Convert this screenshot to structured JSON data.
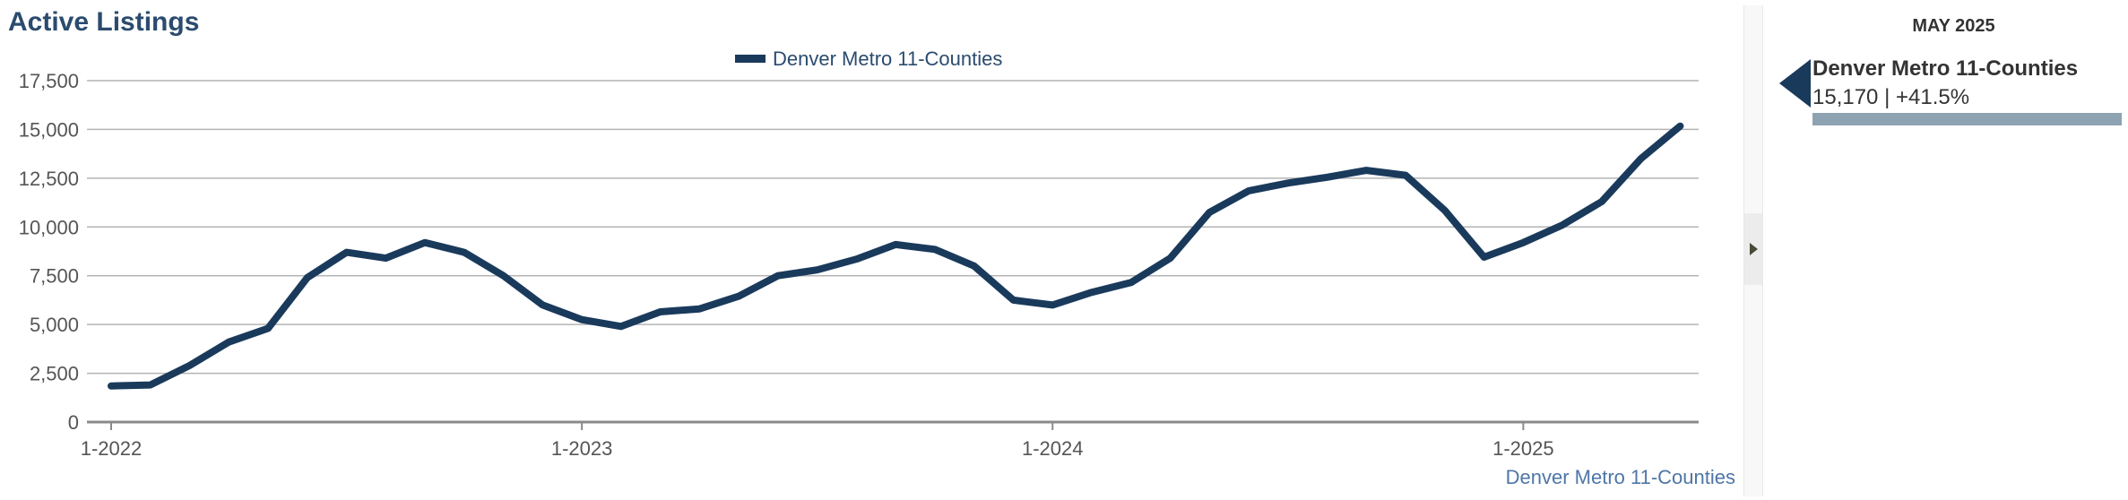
{
  "title": "Active Listings",
  "colors": {
    "title": "#2b4b6e",
    "series": "#1a3a5c",
    "grid": "#b4b4b4",
    "axis_text": "#555555",
    "legend_text": "#2b4b6e",
    "source_text": "#4e76a6",
    "panel_bar": "#8ea3b2"
  },
  "chart_data": {
    "type": "line",
    "title": "Active Listings",
    "xlabel": "",
    "ylabel": "",
    "ylim": [
      0,
      17500
    ],
    "yticks": [
      "0",
      "2,500",
      "5,000",
      "7,500",
      "10,000",
      "12,500",
      "15,000",
      "17,500"
    ],
    "ytick_values": [
      0,
      2500,
      5000,
      7500,
      10000,
      12500,
      15000,
      17500
    ],
    "xticks": [
      "1-2022",
      "1-2023",
      "1-2024",
      "1-2025"
    ],
    "grid": true,
    "legend": {
      "position": "top-center",
      "entries": [
        "Denver Metro 11-Counties"
      ]
    },
    "x": [
      "1-2022",
      "2-2022",
      "3-2022",
      "4-2022",
      "5-2022",
      "6-2022",
      "7-2022",
      "8-2022",
      "9-2022",
      "10-2022",
      "11-2022",
      "12-2022",
      "1-2023",
      "2-2023",
      "3-2023",
      "4-2023",
      "5-2023",
      "6-2023",
      "7-2023",
      "8-2023",
      "9-2023",
      "10-2023",
      "11-2023",
      "12-2023",
      "1-2024",
      "2-2024",
      "3-2024",
      "4-2024",
      "5-2024",
      "6-2024",
      "7-2024",
      "8-2024",
      "9-2024",
      "10-2024",
      "11-2024",
      "12-2024",
      "1-2025",
      "2-2025",
      "3-2025",
      "4-2025",
      "5-2025"
    ],
    "series": [
      {
        "name": "Denver Metro 11-Counties",
        "values": [
          1850,
          1900,
          2900,
          4100,
          4800,
          7400,
          8700,
          8400,
          9200,
          8700,
          7500,
          6000,
          5250,
          4900,
          5650,
          5800,
          6450,
          7500,
          7800,
          8350,
          9100,
          8850,
          8000,
          6250,
          6000,
          6650,
          7150,
          8400,
          10750,
          11850,
          12250,
          12550,
          12900,
          12650,
          10850,
          8450,
          9200,
          10100,
          11300,
          13500,
          15170
        ]
      }
    ],
    "source_label": "Denver Metro 11-Counties"
  },
  "side_panel": {
    "period": "MAY 2025",
    "series_name": "Denver Metro 11-Counties",
    "value": "15,170",
    "separator": "|",
    "change": "+41.5%"
  }
}
